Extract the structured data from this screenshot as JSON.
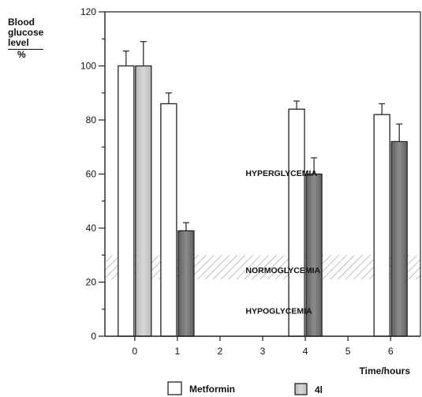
{
  "chart_data": {
    "type": "bar",
    "ylabel_lines": [
      "Blood",
      "glucose",
      "level",
      "%"
    ],
    "xlabel": "Time/hours",
    "x_ticks": [
      "0",
      "1",
      "2",
      "3",
      "4",
      "5",
      "6"
    ],
    "y_ticks": [
      "0",
      "20",
      "40",
      "60",
      "80",
      "100",
      "120"
    ],
    "ylim": [
      0,
      120
    ],
    "xlim": [
      -0.7,
      6.7
    ],
    "series": [
      {
        "name": "Metformin",
        "color": "#ffffff",
        "x": [
          0,
          1,
          4,
          6
        ],
        "values": [
          100,
          86,
          84,
          82
        ],
        "error": [
          5.5,
          4,
          3,
          4
        ]
      },
      {
        "name": "4l",
        "color": "#9a9a9a",
        "x": [
          0,
          1,
          4,
          6
        ],
        "values": [
          100,
          39,
          60,
          72
        ],
        "error": [
          9,
          3,
          6,
          6.5
        ]
      }
    ],
    "normoglycemia_band": [
      21,
      30
    ],
    "annotations": [
      {
        "text": "HYPERGLYCEMIA",
        "x": 2.6,
        "y": 60.5
      },
      {
        "text": "NORMOGLYCEMIA",
        "x": 2.6,
        "y": 24.5
      },
      {
        "text": "HYPOGLYCEMIA",
        "x": 2.6,
        "y": 9.5
      }
    ],
    "legend_position": "bottom"
  }
}
